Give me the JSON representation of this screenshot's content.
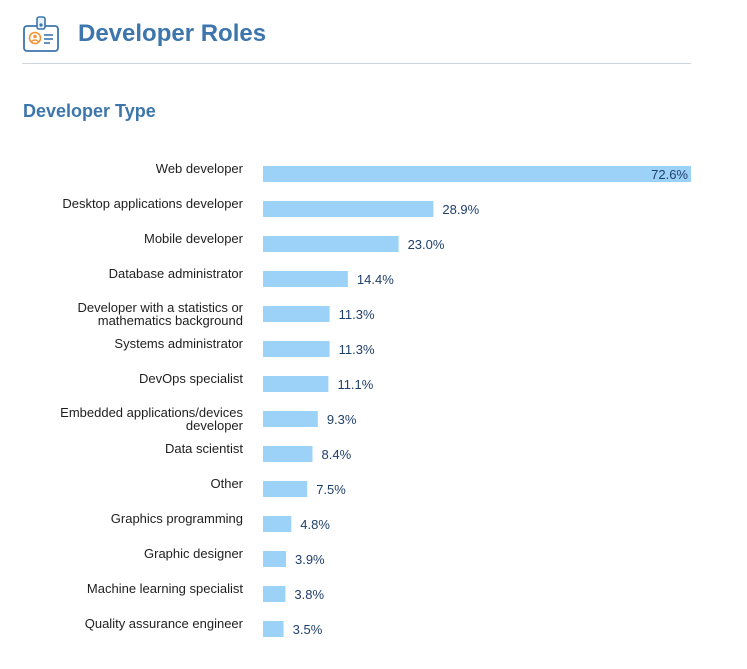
{
  "header": {
    "title": "Developer Roles"
  },
  "section": {
    "title": "Developer Type"
  },
  "colors": {
    "accent": "#3d76ad",
    "bar": "#9cd2f8",
    "value_text": "#1f3f6b",
    "icon_orange": "#f0953a"
  },
  "icons": {
    "header": "id-badge-icon"
  },
  "chart_data": {
    "type": "bar",
    "orientation": "horizontal",
    "title": "Developer Type",
    "categories": [
      [
        "Web developer"
      ],
      [
        "Desktop applications developer"
      ],
      [
        "Mobile developer"
      ],
      [
        "Database administrator"
      ],
      [
        "Developer with a statistics or",
        "mathematics background"
      ],
      [
        "Systems administrator"
      ],
      [
        "DevOps specialist"
      ],
      [
        "Embedded applications/devices",
        "developer"
      ],
      [
        "Data scientist"
      ],
      [
        "Other"
      ],
      [
        "Graphics programming"
      ],
      [
        "Graphic designer"
      ],
      [
        "Machine learning specialist"
      ],
      [
        "Quality assurance engineer"
      ]
    ],
    "values": [
      72.6,
      28.9,
      23.0,
      14.4,
      11.3,
      11.3,
      11.1,
      9.3,
      8.4,
      7.5,
      4.8,
      3.9,
      3.8,
      3.5
    ],
    "value_labels": [
      "72.6%",
      "28.9%",
      "23.0%",
      "14.4%",
      "11.3%",
      "11.3%",
      "11.1%",
      "9.3%",
      "8.4%",
      "7.5%",
      "4.8%",
      "3.9%",
      "3.8%",
      "3.5%"
    ],
    "unit": "%",
    "xlim": [
      0,
      72.6
    ],
    "grid": false,
    "legend": "none"
  }
}
